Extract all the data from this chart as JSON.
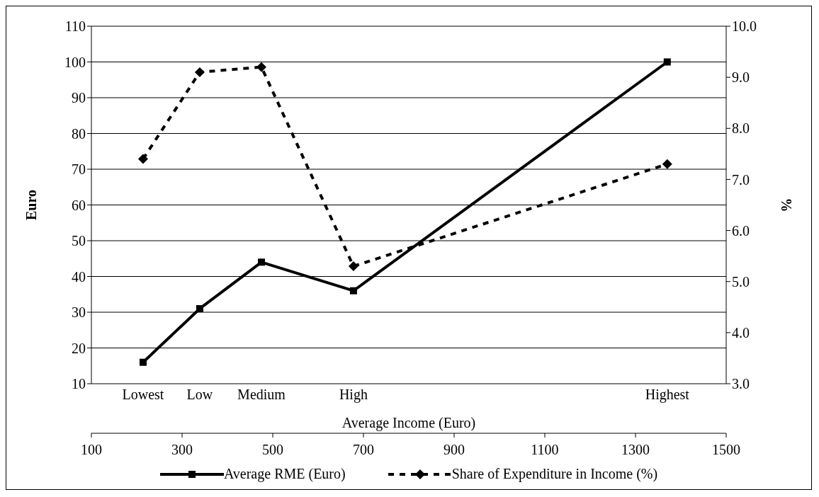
{
  "chart_data": {
    "type": "line",
    "xlabel": "Average Income (Euro)",
    "ylabel": "Euro",
    "y2label": "%",
    "x": [
      214,
      339,
      475,
      678,
      1370
    ],
    "series": [
      {
        "name": "Average RME (Euro)",
        "color": "#000000",
        "values": [
          16,
          31,
          44,
          36,
          100
        ],
        "marker": "square",
        "line_style": "solid"
      },
      {
        "name": "Share of Expenditure in Income (%)",
        "color": "#000000",
        "values": [
          7.4,
          9.1,
          9.2,
          5.3,
          7.3
        ],
        "marker": "diamond",
        "line_style": "dashed",
        "axis": "y2"
      }
    ],
    "xlim": [
      100,
      1500
    ],
    "xticks": [
      100,
      300,
      500,
      700,
      900,
      1100,
      1300,
      1500
    ],
    "ylim": [
      10,
      110
    ],
    "yticks": [
      10,
      20,
      30,
      40,
      50,
      60,
      70,
      80,
      90,
      100,
      110
    ],
    "y2lim": [
      3,
      10
    ],
    "y2ticks": [
      {
        "value": 3,
        "label": "3.0"
      },
      {
        "value": 4,
        "label": "4.0"
      },
      {
        "value": 5,
        "label": "5.0"
      },
      {
        "value": 6,
        "label": "6.0"
      },
      {
        "value": 7,
        "label": "7.0"
      },
      {
        "value": 8,
        "label": "8.0"
      },
      {
        "value": 9,
        "label": "9.0"
      },
      {
        "value": 10,
        "label": "10.0"
      }
    ],
    "annotations": [
      "Lowest",
      "Low",
      "Medium",
      "High",
      "Highest"
    ],
    "grid": "y",
    "legend": "bottom"
  }
}
